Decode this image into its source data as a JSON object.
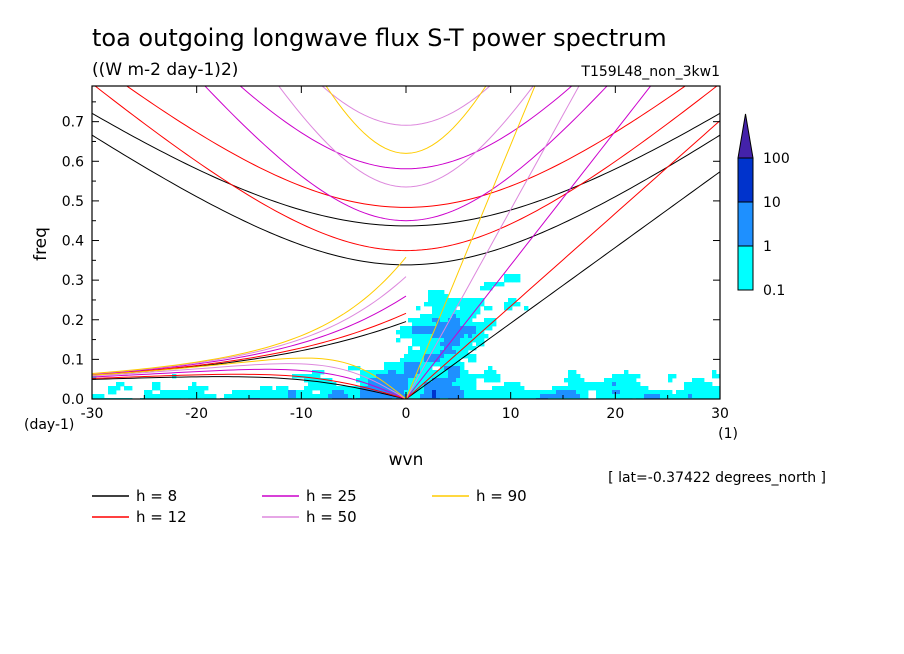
{
  "chart_data": {
    "type": "heatmap",
    "title": "toa outgoing longwave flux S-T power spectrum",
    "units": "((W m-2 day-1)2)",
    "run_label": "T159L48_non_3kw1",
    "xlabel": "wvn",
    "ylabel": "freq",
    "x_unit": "(1)",
    "y_unit": "(day-1)",
    "xlim": [
      -30,
      30
    ],
    "ylim": [
      0,
      0.79
    ],
    "xticks": [
      "-30",
      "-20",
      "-10",
      "0",
      "10",
      "20",
      "30"
    ],
    "yticks": [
      "0.0",
      "0.1",
      "0.2",
      "0.3",
      "0.4",
      "0.5",
      "0.6",
      "0.7"
    ],
    "xtick_values": [
      -30,
      -20,
      -10,
      0,
      10,
      20,
      30
    ],
    "ytick_values": [
      0,
      0.1,
      0.2,
      0.3,
      0.4,
      0.5,
      0.6,
      0.7
    ],
    "footnote": "[ lat=-0.37422 degrees_north ]",
    "colorbar": {
      "levels": [
        "0.1",
        "1",
        "10",
        "100"
      ],
      "colors": [
        "#00ffff",
        "#1e90ff",
        "#0033cc",
        "#4422aa"
      ]
    },
    "dispersion_curves": [
      {
        "label": "h =  8",
        "h": 8,
        "color": "#000000"
      },
      {
        "label": "h = 12",
        "h": 12,
        "color": "#ff0000"
      },
      {
        "label": "h = 25",
        "h": 25,
        "color": "#cc00cc"
      },
      {
        "label": "h = 50",
        "h": 50,
        "color": "#dd88dd"
      },
      {
        "label": "h = 90",
        "h": 90,
        "color": "#ffcc00"
      }
    ]
  }
}
